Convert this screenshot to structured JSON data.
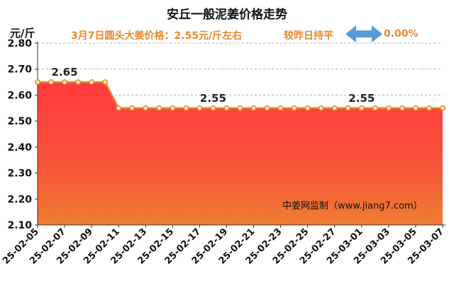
{
  "header": {
    "title": "安丘一般泥姜价格走势",
    "unit": "元/斤",
    "price_info": "3月7日圆头大姜价格：2.55元/斤左右",
    "change_info": "较昨日持平",
    "change_pct": "0.00%"
  },
  "watermark": "中姜网监制（www.jiang7.com）",
  "colors": {
    "accent": "#e8892c",
    "line": "#e8892c",
    "fill_top": "#ff3a40",
    "fill_bottom": "#ee7d30",
    "arrow": "#5b9bd5",
    "grid": "#b0b0b0"
  },
  "chart_data": {
    "type": "area",
    "grid": true,
    "ylim": [
      2.1,
      2.8
    ],
    "yticks": [
      "2.10",
      "2.20",
      "2.30",
      "2.40",
      "2.50",
      "2.60",
      "2.70",
      "2.80"
    ],
    "xticks": [
      "25-02-05",
      "25-02-07",
      "25-02-09",
      "25-02-11",
      "25-02-13",
      "25-02-15",
      "25-02-17",
      "25-02-19",
      "25-02-21",
      "25-02-23",
      "25-02-25",
      "25-02-27",
      "25-03-01",
      "25-03-03",
      "25-03-05",
      "25-03-07"
    ],
    "x": [
      "25-02-05",
      "25-02-06",
      "25-02-07",
      "25-02-08",
      "25-02-09",
      "25-02-10",
      "25-02-11",
      "25-02-12",
      "25-02-13",
      "25-02-14",
      "25-02-15",
      "25-02-16",
      "25-02-17",
      "25-02-18",
      "25-02-19",
      "25-02-20",
      "25-02-21",
      "25-02-22",
      "25-02-23",
      "25-02-24",
      "25-02-25",
      "25-02-26",
      "25-02-27",
      "25-02-28",
      "25-03-01",
      "25-03-02",
      "25-03-03",
      "25-03-04",
      "25-03-05",
      "25-03-06",
      "25-03-07"
    ],
    "values": [
      2.65,
      2.65,
      2.65,
      2.65,
      2.65,
      2.65,
      2.55,
      2.55,
      2.55,
      2.55,
      2.55,
      2.55,
      2.55,
      2.55,
      2.55,
      2.55,
      2.55,
      2.55,
      2.55,
      2.55,
      2.55,
      2.55,
      2.55,
      2.55,
      2.55,
      2.55,
      2.55,
      2.55,
      2.55,
      2.55,
      2.55
    ],
    "data_labels": [
      {
        "x": "25-02-07",
        "text": "2.65"
      },
      {
        "x": "25-02-18",
        "text": "2.55"
      },
      {
        "x": "25-03-01",
        "text": "2.55"
      }
    ]
  }
}
